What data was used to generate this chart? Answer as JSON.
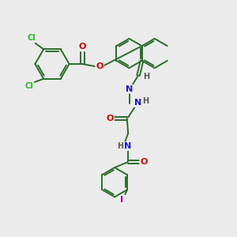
{
  "background_color": "#ebebeb",
  "bond_color": "#2a6e2a",
  "atom_colors": {
    "Cl": "#22bb22",
    "O": "#dd0000",
    "N": "#1818dd",
    "H": "#555555",
    "I": "#bb00bb"
  },
  "line_width": 1.4,
  "figsize": [
    3.0,
    3.0
  ],
  "dpi": 100
}
